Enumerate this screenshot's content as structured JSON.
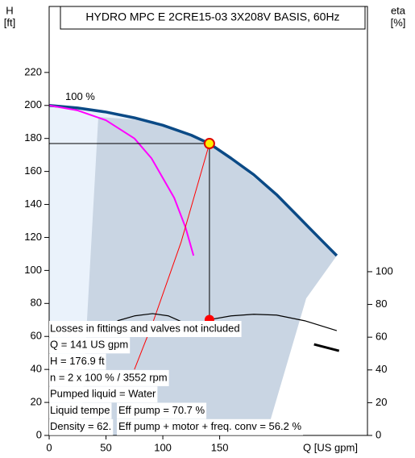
{
  "chart_data": {
    "type": "line",
    "title": "HYDRO MPC E 2CRE15-03 3X208V BASIS, 60Hz",
    "y_label": "H",
    "y_unit": "[ft]",
    "y2_label": "eta",
    "y2_unit": "[%]",
    "x_label": "Q [US gpm]",
    "xlim": [
      0,
      280
    ],
    "ylim": [
      0,
      260
    ],
    "y2lim": [
      0,
      262
    ],
    "xticks": [
      0,
      50,
      100,
      150
    ],
    "yticks": [
      0,
      20,
      40,
      60,
      80,
      100,
      120,
      140,
      160,
      180,
      200,
      220
    ],
    "y2ticks": [
      0,
      20,
      40,
      60,
      80,
      100
    ],
    "series": [
      {
        "name": "100 %",
        "color": "#0b4a86",
        "width": 3.5,
        "x": [
          0,
          25,
          50,
          75,
          100,
          125,
          141,
          160,
          180,
          200,
          220,
          240,
          253
        ],
        "values": [
          200,
          198.5,
          196,
          192.5,
          188,
          182,
          176.9,
          168,
          158,
          146,
          132,
          118,
          109
        ]
      },
      {
        "color": "#ff00ff",
        "width": 2,
        "x": [
          0,
          25,
          50,
          75,
          90,
          100,
          110,
          120,
          127
        ],
        "values": [
          200,
          197,
          191,
          180,
          168,
          156,
          144,
          126,
          109
        ]
      },
      {
        "color": "#ff0000",
        "width": 1,
        "x": [
          75,
          91,
          116,
          141
        ],
        "values": [
          40,
          68,
          117,
          176.9
        ]
      },
      {
        "color": "#000000",
        "width": 1.2,
        "axis": "y2",
        "x": [
          60,
          75,
          91,
          105,
          118
        ],
        "values": [
          70,
          73,
          74.4,
          73,
          69
        ]
      },
      {
        "color": "#000000",
        "width": 1.2,
        "axis": "y2",
        "x": [
          141,
          160,
          180,
          200,
          225,
          253
        ],
        "values": [
          70.7,
          73,
          74,
          73.5,
          70,
          64
        ]
      },
      {
        "color": "#000000",
        "width": 3,
        "axis": "y2",
        "x": [
          233,
          255
        ],
        "values": [
          55.6,
          51.7
        ]
      }
    ],
    "operating_point": {
      "x": 141,
      "y": 176.9,
      "eta": 70.7
    },
    "annotations": [
      "Losses in fittings and valves not included",
      "Q = 141 US gpm",
      "H = 176.9 ft",
      "n = 2 x 100 % / 3552 rpm",
      "Pumped liquid = Water",
      "Liquid tempe",
      "Density = 62."
    ],
    "annotations_right": [
      "Eff pump = 70.7 %",
      "Eff pump + motor + freq. conv = 56.2 %"
    ]
  }
}
